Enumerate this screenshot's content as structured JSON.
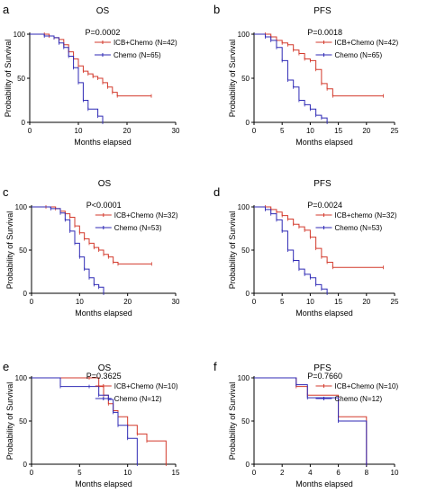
{
  "colors": {
    "icb": "#d33a2c",
    "chemo": "#2f2ab5",
    "axis": "#000000"
  },
  "chart_data": [
    {
      "type": "line",
      "panel": "a",
      "title": "OS",
      "pvalue": "P=0.0002",
      "xlabel": "Months elapsed",
      "ylabel": "Probability of Survival",
      "xlim": [
        0,
        30
      ],
      "ylim": [
        0,
        100
      ],
      "xticks": [
        "0",
        "10",
        "20",
        "30"
      ],
      "yticks": [
        "0",
        "50",
        "100"
      ],
      "legend_position": "top-right",
      "series": [
        {
          "name": "ICB+Chemo (N=42)",
          "color": "icb",
          "x": [
            0,
            3,
            4,
            5,
            6,
            7,
            8,
            9,
            10,
            11,
            12,
            13,
            14,
            15,
            16,
            17,
            18,
            25
          ],
          "y": [
            100,
            100,
            98,
            96,
            94,
            88,
            80,
            72,
            64,
            58,
            55,
            52,
            50,
            45,
            40,
            34,
            30,
            30
          ]
        },
        {
          "name": "Chemo (N=65)",
          "color": "chemo",
          "x": [
            0,
            3,
            5,
            6,
            7,
            8,
            9,
            10,
            11,
            12,
            14,
            15
          ],
          "y": [
            100,
            98,
            96,
            90,
            85,
            75,
            62,
            45,
            25,
            15,
            7,
            0
          ]
        }
      ]
    },
    {
      "type": "line",
      "panel": "b",
      "title": "PFS",
      "pvalue": "P=0.0018",
      "xlabel": "Months elapsed",
      "ylabel": "Probability of Survival",
      "xlim": [
        0,
        25
      ],
      "ylim": [
        0,
        100
      ],
      "xticks": [
        "0",
        "5",
        "10",
        "15",
        "20",
        "25"
      ],
      "yticks": [
        "0",
        "50",
        "100"
      ],
      "legend_position": "top-right",
      "series": [
        {
          "name": "ICB+Chemo (N=42)",
          "color": "icb",
          "x": [
            0,
            2,
            3,
            4,
            5,
            6,
            7,
            8,
            9,
            10,
            11,
            12,
            13,
            14,
            23
          ],
          "y": [
            100,
            100,
            97,
            93,
            90,
            88,
            82,
            78,
            72,
            70,
            60,
            44,
            38,
            30,
            30
          ]
        },
        {
          "name": "Chemo (N=65)",
          "color": "chemo",
          "x": [
            0,
            2,
            3,
            4,
            5,
            6,
            7,
            8,
            9,
            10,
            11,
            12,
            13
          ],
          "y": [
            100,
            97,
            93,
            85,
            70,
            48,
            40,
            25,
            20,
            15,
            8,
            5,
            0
          ]
        }
      ]
    },
    {
      "type": "line",
      "panel": "c",
      "title": "OS",
      "pvalue": "P<0.0001",
      "xlabel": "Months elapsed",
      "ylabel": "Probability of Survival",
      "xlim": [
        0,
        30
      ],
      "ylim": [
        0,
        100
      ],
      "xticks": [
        "0",
        "10",
        "20",
        "30"
      ],
      "yticks": [
        "0",
        "50",
        "100"
      ],
      "legend_position": "top-right",
      "series": [
        {
          "name": "ICB+Chemo (N=32)",
          "color": "icb",
          "x": [
            0,
            3,
            5,
            6,
            7,
            8,
            9,
            10,
            11,
            12,
            13,
            14,
            15,
            16,
            17,
            18,
            25
          ],
          "y": [
            100,
            100,
            98,
            95,
            92,
            88,
            78,
            70,
            63,
            58,
            53,
            50,
            45,
            42,
            36,
            34,
            34
          ]
        },
        {
          "name": "Chemo (N=53)",
          "color": "chemo",
          "x": [
            0,
            4,
            6,
            7,
            8,
            9,
            10,
            11,
            12,
            13,
            14,
            15
          ],
          "y": [
            100,
            98,
            93,
            85,
            72,
            58,
            42,
            28,
            18,
            10,
            7,
            0
          ]
        }
      ]
    },
    {
      "type": "line",
      "panel": "d",
      "title": "PFS",
      "pvalue": "P=0.0024",
      "xlabel": "Months elapsed",
      "ylabel": "Probability of Survival",
      "xlim": [
        0,
        25
      ],
      "ylim": [
        0,
        100
      ],
      "xticks": [
        "0",
        "5",
        "10",
        "15",
        "20",
        "25"
      ],
      "yticks": [
        "0",
        "50",
        "100"
      ],
      "legend_position": "top-right",
      "series": [
        {
          "name": "ICB+chemo (N=32)",
          "color": "icb",
          "x": [
            0,
            2,
            3,
            4,
            5,
            6,
            7,
            8,
            9,
            10,
            11,
            12,
            13,
            14,
            23
          ],
          "y": [
            100,
            100,
            97,
            94,
            90,
            86,
            80,
            77,
            73,
            65,
            52,
            42,
            36,
            30,
            30
          ]
        },
        {
          "name": "Chemo (N=53)",
          "color": "chemo",
          "x": [
            0,
            2,
            3,
            4,
            5,
            6,
            7,
            8,
            9,
            10,
            11,
            12,
            13
          ],
          "y": [
            100,
            97,
            92,
            85,
            72,
            50,
            38,
            28,
            22,
            18,
            10,
            5,
            0
          ]
        }
      ]
    },
    {
      "type": "line",
      "panel": "e",
      "title": "OS",
      "pvalue": "P=0.3625",
      "xlabel": "Months elapsed",
      "ylabel": "Probability of Survival",
      "xlim": [
        0,
        15
      ],
      "ylim": [
        0,
        100
      ],
      "xticks": [
        "0",
        "5",
        "10",
        "15"
      ],
      "yticks": [
        "0",
        "50",
        "100"
      ],
      "legend_position": "top-right",
      "series": [
        {
          "name": "ICB+Chemo (N=10)",
          "color": "icb",
          "x": [
            0,
            6,
            7,
            7.5,
            8,
            8.5,
            9,
            10,
            11,
            12,
            14
          ],
          "y": [
            100,
            100,
            90,
            80,
            70,
            62,
            55,
            45,
            35,
            27,
            0
          ]
        },
        {
          "name": "Chemo (N=12)",
          "color": "chemo",
          "x": [
            0,
            3,
            6,
            7,
            8,
            8.5,
            9,
            10,
            11
          ],
          "y": [
            100,
            90,
            90,
            80,
            75,
            60,
            45,
            30,
            0
          ]
        }
      ]
    },
    {
      "type": "line",
      "panel": "f",
      "title": "PFS",
      "pvalue": "P=0.7660",
      "xlabel": "Months elapsed",
      "ylabel": "Probability of Survival",
      "xlim": [
        0,
        10
      ],
      "ylim": [
        0,
        100
      ],
      "xticks": [
        "0",
        "2",
        "4",
        "6",
        "8",
        "10"
      ],
      "yticks": [
        "0",
        "50",
        "100"
      ],
      "legend_position": "top-right",
      "series": [
        {
          "name": "ICB+Chemo (N=10)",
          "color": "icb",
          "x": [
            0,
            3,
            3.8,
            6,
            8
          ],
          "y": [
            100,
            90,
            80,
            55,
            0
          ]
        },
        {
          "name": "Chemo (N=12)",
          "color": "chemo",
          "x": [
            0,
            3,
            3.8,
            6,
            8
          ],
          "y": [
            100,
            92,
            77,
            50,
            0
          ]
        }
      ]
    }
  ],
  "panel_labels": [
    "a",
    "b",
    "c",
    "d",
    "e",
    "f"
  ]
}
